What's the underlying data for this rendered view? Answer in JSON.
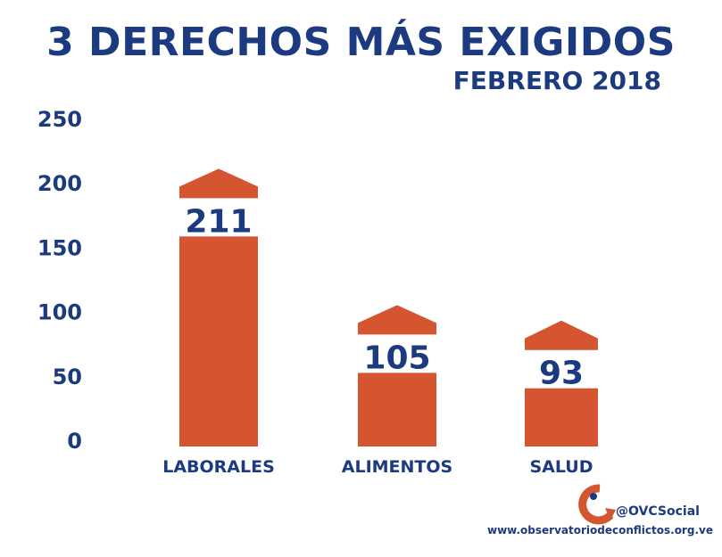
{
  "chart_data": {
    "type": "bar",
    "title": "3 DERECHOS MÁS EXIGIDOS",
    "subtitle": "FEBRERO 2018",
    "categories": [
      "LABORALES",
      "ALIMENTOS",
      "SALUD"
    ],
    "values": [
      211,
      105,
      93
    ],
    "data_labels": [
      "211",
      "105",
      "93"
    ],
    "ylim": [
      0,
      250
    ],
    "yticks": [
      0,
      50,
      100,
      150,
      200,
      250
    ],
    "ytick_labels": [
      "0",
      "50",
      "100",
      "150",
      "200",
      "250"
    ],
    "grid": false,
    "bar_color": "#D4552F",
    "text_color": "#1B3A7F"
  },
  "footer": {
    "handle": "@OVCSocial",
    "url": "www.observatoriodeconflictos.org.ve",
    "logo": "ovc-logo"
  }
}
